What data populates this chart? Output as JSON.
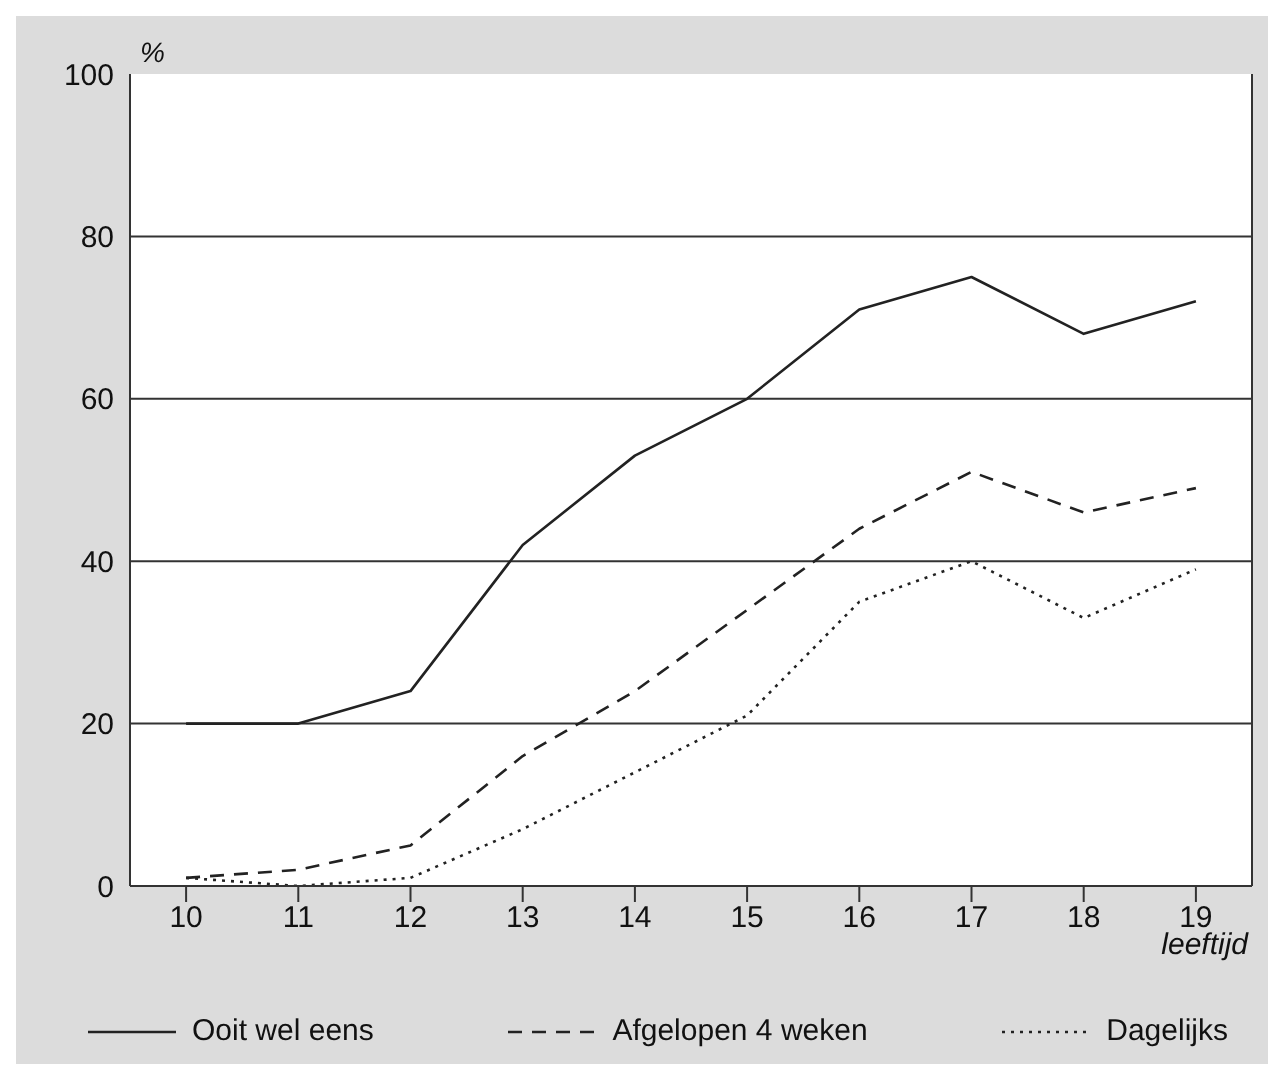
{
  "chart_data": {
    "type": "line",
    "ylabel": "%",
    "xlabel": "leeftijd",
    "x": [
      10,
      11,
      12,
      13,
      14,
      15,
      16,
      17,
      18,
      19
    ],
    "xlim": [
      9.5,
      19.5
    ],
    "xticks": [
      10,
      11,
      12,
      13,
      14,
      15,
      16,
      17,
      18,
      19
    ],
    "ylim": [
      0,
      100
    ],
    "yticks": [
      0,
      20,
      40,
      60,
      80,
      100
    ],
    "grid": "y",
    "legend": "bottom",
    "marker": "none",
    "series": [
      {
        "name": "Ooit wel eens",
        "color": "#222222",
        "line_style": "solid",
        "values": [
          20,
          20,
          24,
          42,
          53,
          60,
          71,
          75,
          68,
          72
        ]
      },
      {
        "name": "Afgelopen 4 weken",
        "color": "#222222",
        "line_style": "dashed",
        "values": [
          1,
          2,
          5,
          16,
          24,
          34,
          44,
          51,
          46,
          49
        ]
      },
      {
        "name": "Dagelijks",
        "color": "#222222",
        "line_style": "dotted",
        "values": [
          1,
          0,
          1,
          7,
          14,
          21,
          35,
          40,
          33,
          39
        ]
      }
    ]
  }
}
